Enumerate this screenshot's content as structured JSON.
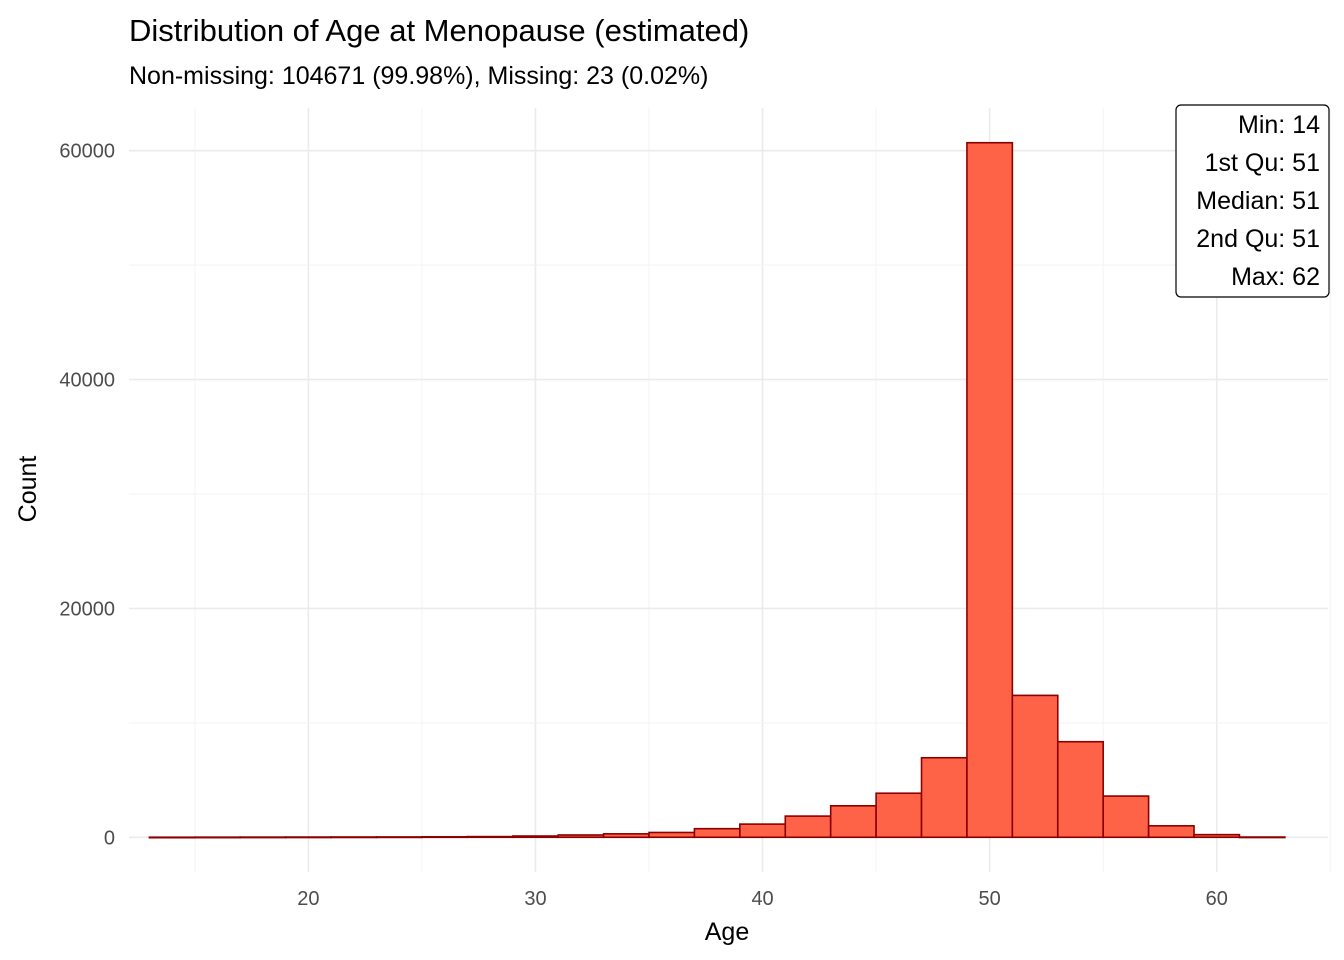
{
  "chart_data": {
    "type": "bar",
    "title": "Distribution of Age at Menopause (estimated)",
    "subtitle": "Non-missing: 104671 (99.98%), Missing: 23 (0.02%)",
    "xlabel": "Age",
    "ylabel": "Count",
    "bin_width": 2,
    "bins": [
      {
        "center": 14,
        "count": 5
      },
      {
        "center": 16,
        "count": 10
      },
      {
        "center": 18,
        "count": 15
      },
      {
        "center": 20,
        "count": 20
      },
      {
        "center": 22,
        "count": 25
      },
      {
        "center": 24,
        "count": 30
      },
      {
        "center": 26,
        "count": 40
      },
      {
        "center": 28,
        "count": 60
      },
      {
        "center": 30,
        "count": 110
      },
      {
        "center": 32,
        "count": 200
      },
      {
        "center": 34,
        "count": 300
      },
      {
        "center": 36,
        "count": 420
      },
      {
        "center": 38,
        "count": 750
      },
      {
        "center": 40,
        "count": 1150
      },
      {
        "center": 42,
        "count": 1850
      },
      {
        "center": 44,
        "count": 2750
      },
      {
        "center": 46,
        "count": 3850
      },
      {
        "center": 48,
        "count": 6950
      },
      {
        "center": 50,
        "count": 60700
      },
      {
        "center": 52,
        "count": 12400
      },
      {
        "center": 54,
        "count": 8350
      },
      {
        "center": 56,
        "count": 3600
      },
      {
        "center": 58,
        "count": 1000
      },
      {
        "center": 60,
        "count": 230
      },
      {
        "center": 62,
        "count": 20
      }
    ],
    "x_ticks": [
      20,
      30,
      40,
      50,
      60
    ],
    "y_ticks": [
      0,
      20000,
      40000,
      60000
    ],
    "xlim": [
      12.1,
      64.9
    ],
    "ylim": [
      -3035,
      63735
    ],
    "grid": true,
    "legend_position": "top-right",
    "stats": [
      "Min: 14",
      "1st Qu: 51",
      "Median: 51",
      "2nd Qu: 51",
      "Max: 62"
    ],
    "colors": {
      "fill": "#ff6347",
      "outline": "#8b0000",
      "grid": "#ebebeb",
      "tick_text": "#4d4d4d"
    }
  }
}
